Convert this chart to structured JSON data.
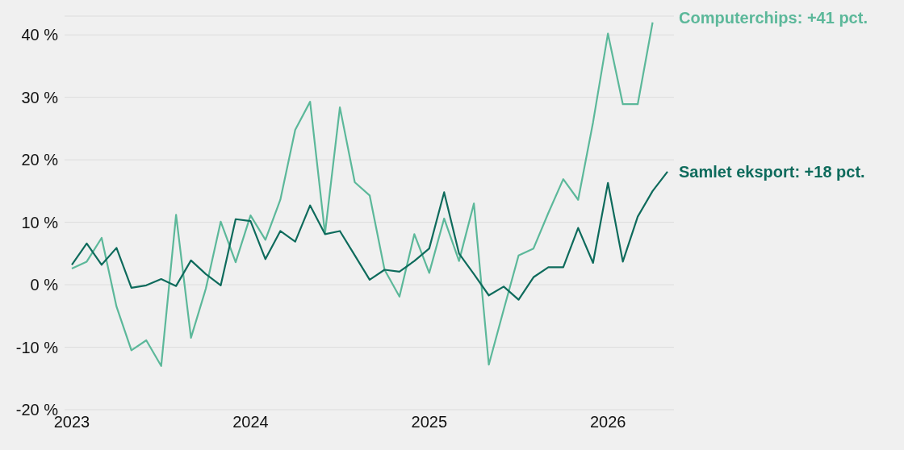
{
  "chart_data": {
    "type": "line",
    "categories": [
      "2023",
      null,
      null,
      null,
      null,
      null,
      null,
      null,
      null,
      null,
      null,
      null,
      "2024",
      null,
      null,
      null,
      null,
      null,
      null,
      null,
      null,
      null,
      null,
      null,
      "2025",
      null,
      null,
      null,
      null,
      null,
      null,
      null,
      null,
      null,
      null,
      null,
      "2026",
      null,
      null,
      null,
      null
    ],
    "series": [
      {
        "name": "Computerchips: +41 pct.",
        "color": "#5cb89a",
        "values": [
          2.6,
          3.7,
          7.5,
          -3.5,
          -10.5,
          -8.9,
          -13.0,
          11.2,
          -8.5,
          -0.6,
          10.1,
          3.6,
          11.1,
          7.2,
          13.6,
          24.8,
          29.3,
          8.2,
          28.4,
          16.4,
          14.3,
          2.4,
          -1.9,
          8.1,
          1.9,
          10.6,
          3.8,
          13.0,
          -12.8,
          -4.0,
          4.7,
          5.8,
          11.5,
          16.9,
          13.6,
          26,
          40.2,
          28.9,
          28.9,
          42.0,
          null
        ]
      },
      {
        "name": "Samlet eksport: +18 pct.",
        "color": "#0e6b5c",
        "values": [
          3.2,
          6.6,
          3.2,
          5.9,
          -0.5,
          -0.1,
          0.9,
          -0.2,
          3.9,
          1.7,
          -0.1,
          10.5,
          10.2,
          4.1,
          8.6,
          6.9,
          12.7,
          8.1,
          8.6,
          4.7,
          0.8,
          2.4,
          2.1,
          3.8,
          5.8,
          14.8,
          5.0,
          1.7,
          -1.7,
          -0.3,
          -2.4,
          1.2,
          2.8,
          2.8,
          9.1,
          3.5,
          16.3,
          3.7,
          10.9,
          15.0,
          18.1
        ]
      }
    ],
    "ylim": [
      -20,
      43
    ],
    "yticks": [
      {
        "value": -20,
        "label": "-20 %"
      },
      {
        "value": -10,
        "label": "-10 %"
      },
      {
        "value": 0,
        "label": "0 %"
      },
      {
        "value": 10,
        "label": "10 %"
      },
      {
        "value": 20,
        "label": "20 %"
      },
      {
        "value": 30,
        "label": "30 %"
      },
      {
        "value": 40,
        "label": "40 %"
      }
    ],
    "grid": "y",
    "marker": "none",
    "line_style": "solid"
  }
}
